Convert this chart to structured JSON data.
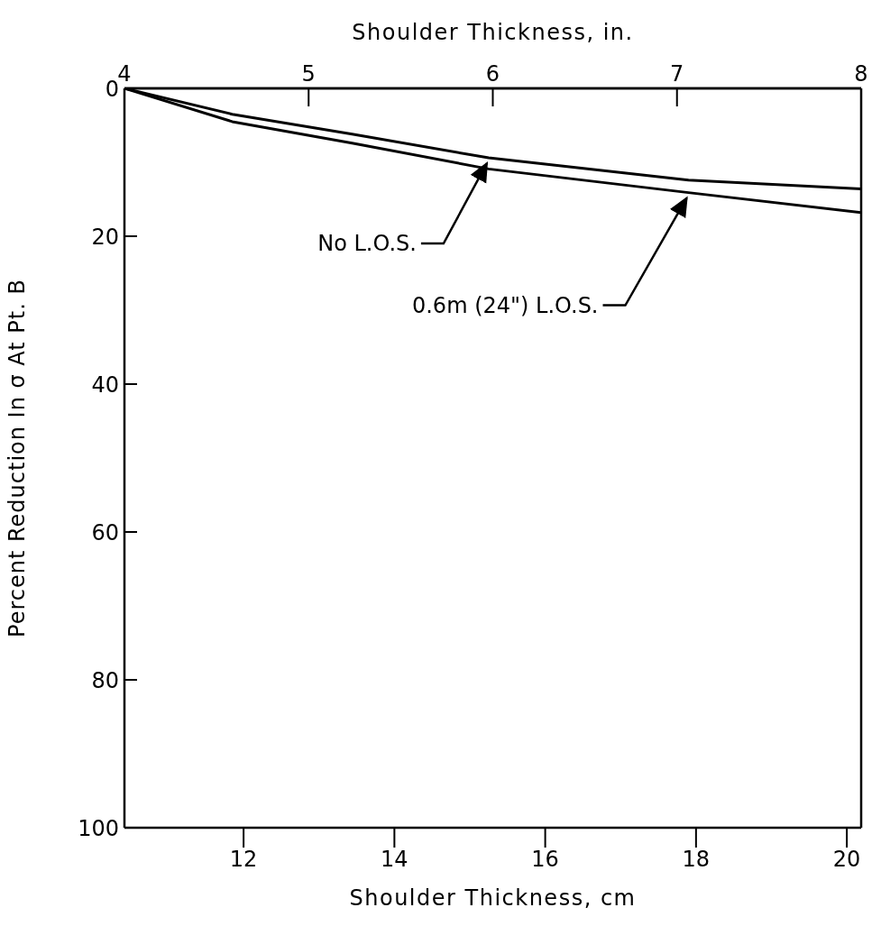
{
  "chart_data": {
    "type": "line",
    "xlabel": "Shoulder Thickness, cm",
    "x2label": "Shoulder Thickness, in.",
    "ylabel": "Percent Reduction In σ At Pt. B",
    "x": [
      10.42,
      11.85,
      13.44,
      15.25,
      17.9,
      20.19
    ],
    "series": [
      {
        "name": "No L.O.S.",
        "color": "#000000",
        "values": [
          0,
          3.5,
          6.2,
          9.4,
          12.4,
          13.6
        ]
      },
      {
        "name": "0.6m (24\") L.O.S.",
        "color": "#000000",
        "values": [
          0,
          4.5,
          7.4,
          10.9,
          14.1,
          16.8
        ]
      }
    ],
    "xlim": [
      10.42,
      20.19
    ],
    "xticks": [
      12,
      14,
      16,
      18,
      20
    ],
    "x2lim": [
      4,
      8
    ],
    "x2ticks": [
      4,
      5,
      6,
      7,
      8
    ],
    "ylim": [
      100,
      0
    ],
    "yticks": [
      0,
      20,
      40,
      60,
      80,
      100
    ],
    "grid": false,
    "legend": false,
    "marker": "none",
    "line_style": "solid"
  }
}
